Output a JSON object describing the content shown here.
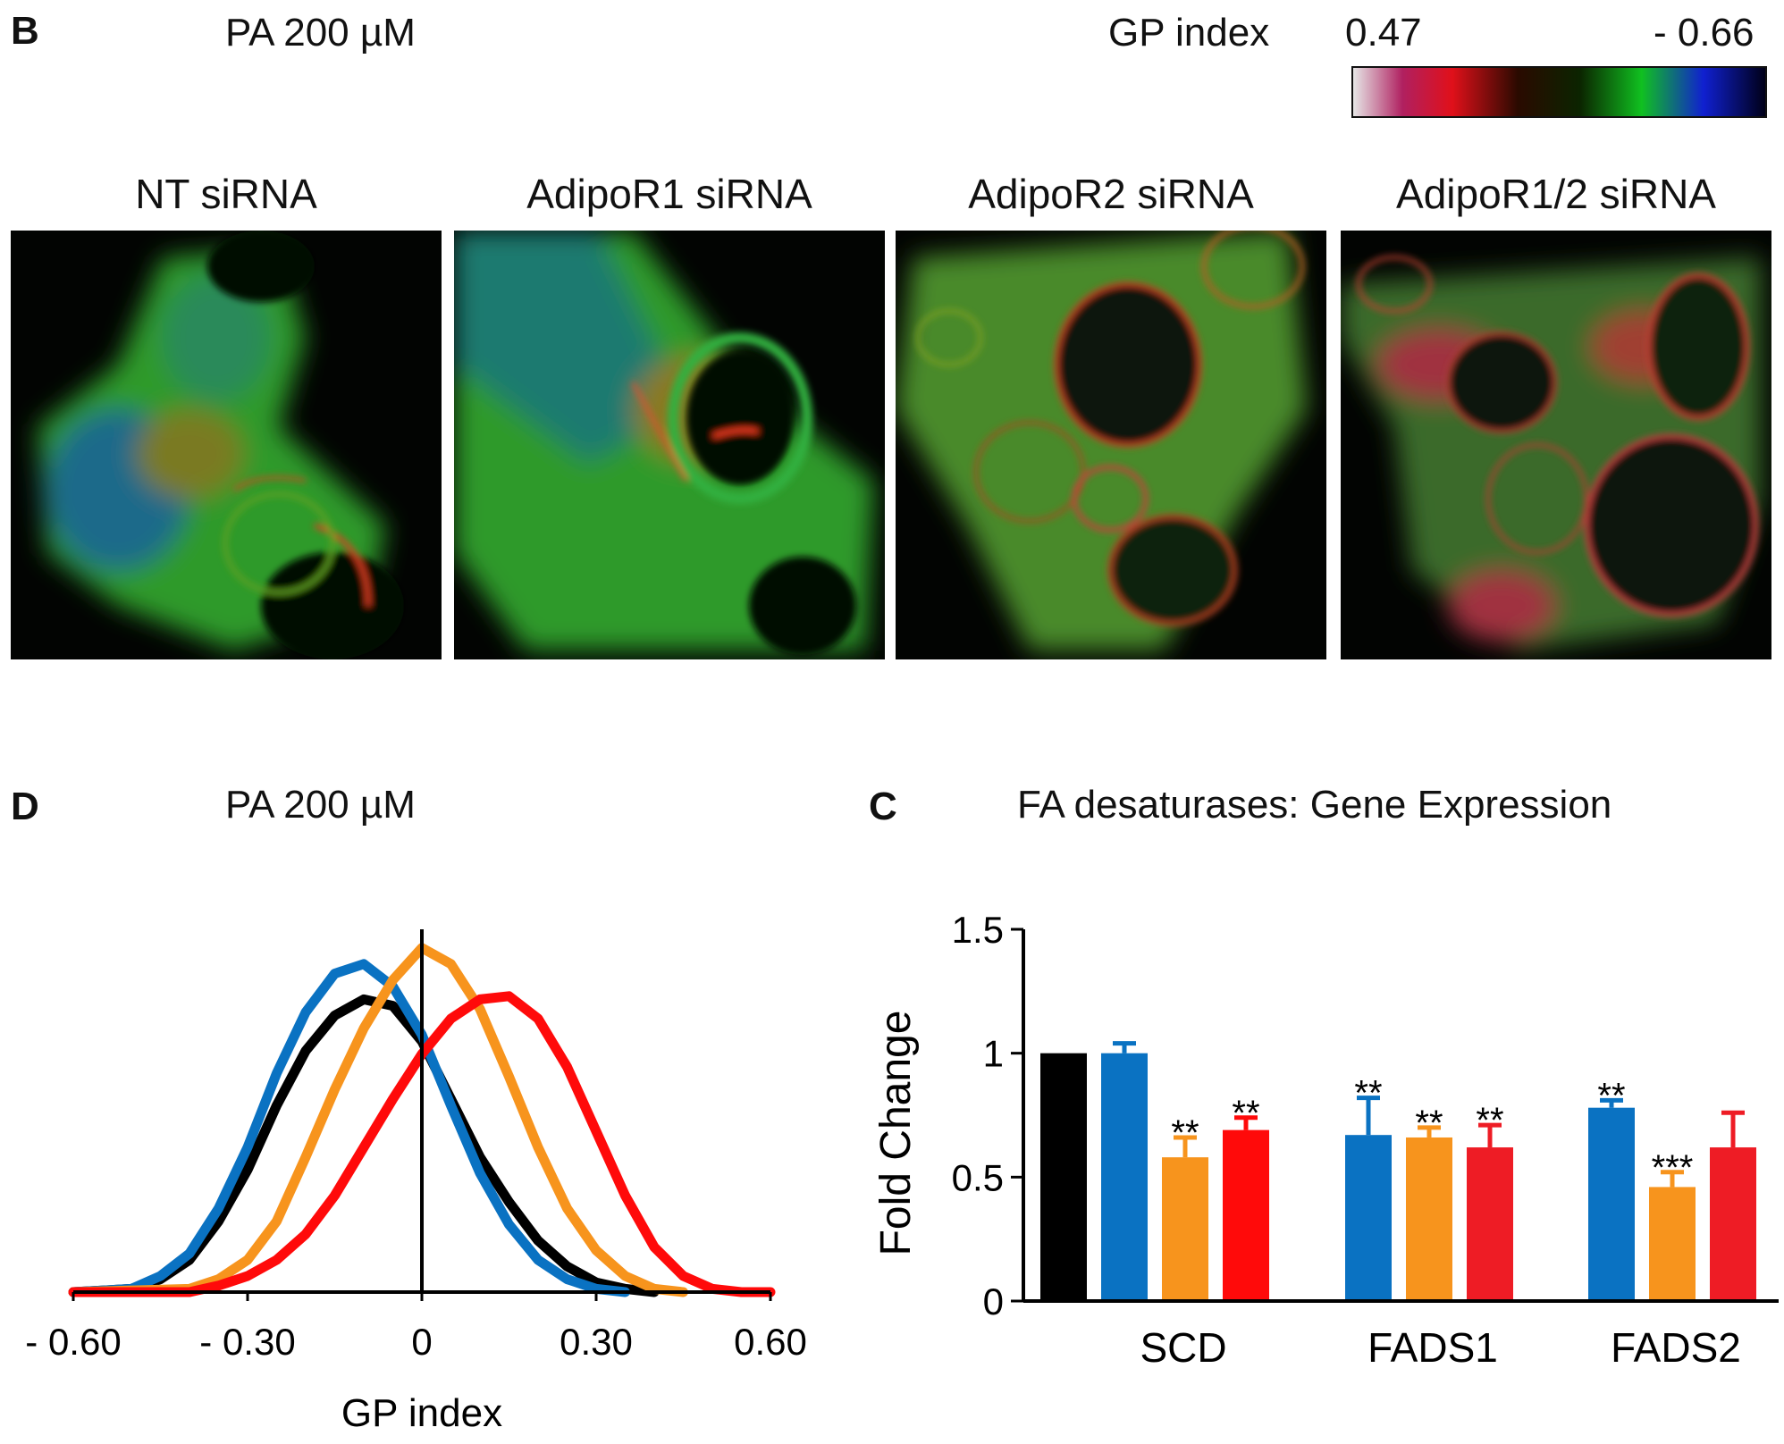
{
  "panel_b": {
    "letter": "B",
    "condition": "PA 200 µM",
    "colorbar": {
      "title": "GP index",
      "left_value": "0.47",
      "right_value": "- 0.66"
    },
    "images": [
      {
        "label": "NT siRNA"
      },
      {
        "label": "AdipoR1 siRNA"
      },
      {
        "label": "AdipoR2 siRNA"
      },
      {
        "label": "AdipoR1/2 siRNA"
      }
    ]
  },
  "panel_d": {
    "letter": "D",
    "condition": "PA 200 µM"
  },
  "panel_c": {
    "letter": "C",
    "title": "FA desaturases: Gene Expression"
  },
  "chart_data": [
    {
      "type": "line",
      "xlabel": "GP index",
      "ylabel": "",
      "xlim": [
        -0.6,
        0.6
      ],
      "xticks": [
        "- 0.60",
        "- 0.30",
        "0",
        "0.30",
        "0.60"
      ],
      "tick_values": [
        -0.6,
        -0.3,
        0,
        0.3,
        0.6
      ],
      "series": [
        {
          "color": "#000000",
          "points": [
            [
              -0.6,
              0
            ],
            [
              -0.5,
              0.01
            ],
            [
              -0.45,
              0.04
            ],
            [
              -0.4,
              0.1
            ],
            [
              -0.35,
              0.22
            ],
            [
              -0.3,
              0.38
            ],
            [
              -0.25,
              0.58
            ],
            [
              -0.2,
              0.75
            ],
            [
              -0.15,
              0.86
            ],
            [
              -0.1,
              0.91
            ],
            [
              -0.05,
              0.89
            ],
            [
              0,
              0.78
            ],
            [
              0.05,
              0.6
            ],
            [
              0.1,
              0.42
            ],
            [
              0.15,
              0.28
            ],
            [
              0.2,
              0.16
            ],
            [
              0.25,
              0.08
            ],
            [
              0.3,
              0.03
            ],
            [
              0.35,
              0.01
            ],
            [
              0.4,
              0
            ]
          ]
        },
        {
          "color": "#0a72c2",
          "points": [
            [
              -0.6,
              0
            ],
            [
              -0.5,
              0.01
            ],
            [
              -0.45,
              0.05
            ],
            [
              -0.4,
              0.12
            ],
            [
              -0.35,
              0.26
            ],
            [
              -0.3,
              0.45
            ],
            [
              -0.25,
              0.68
            ],
            [
              -0.2,
              0.87
            ],
            [
              -0.15,
              0.99
            ],
            [
              -0.1,
              1.02
            ],
            [
              -0.05,
              0.95
            ],
            [
              0,
              0.8
            ],
            [
              0.05,
              0.58
            ],
            [
              0.1,
              0.37
            ],
            [
              0.15,
              0.21
            ],
            [
              0.2,
              0.1
            ],
            [
              0.25,
              0.04
            ],
            [
              0.3,
              0.01
            ],
            [
              0.35,
              0
            ]
          ]
        },
        {
          "color": "#f7941d",
          "points": [
            [
              -0.6,
              0
            ],
            [
              -0.4,
              0.01
            ],
            [
              -0.35,
              0.04
            ],
            [
              -0.3,
              0.1
            ],
            [
              -0.25,
              0.22
            ],
            [
              -0.2,
              0.42
            ],
            [
              -0.15,
              0.63
            ],
            [
              -0.1,
              0.82
            ],
            [
              -0.05,
              0.97
            ],
            [
              0,
              1.07
            ],
            [
              0.05,
              1.02
            ],
            [
              0.1,
              0.88
            ],
            [
              0.15,
              0.67
            ],
            [
              0.2,
              0.45
            ],
            [
              0.25,
              0.26
            ],
            [
              0.3,
              0.13
            ],
            [
              0.35,
              0.05
            ],
            [
              0.4,
              0.01
            ],
            [
              0.45,
              0
            ]
          ]
        },
        {
          "color": "#ff0a0a",
          "points": [
            [
              -0.6,
              0
            ],
            [
              -0.4,
              0
            ],
            [
              -0.35,
              0.02
            ],
            [
              -0.3,
              0.05
            ],
            [
              -0.25,
              0.1
            ],
            [
              -0.2,
              0.18
            ],
            [
              -0.15,
              0.3
            ],
            [
              -0.1,
              0.45
            ],
            [
              -0.05,
              0.6
            ],
            [
              0,
              0.74
            ],
            [
              0.05,
              0.85
            ],
            [
              0.1,
              0.91
            ],
            [
              0.15,
              0.92
            ],
            [
              0.2,
              0.85
            ],
            [
              0.25,
              0.7
            ],
            [
              0.3,
              0.5
            ],
            [
              0.35,
              0.3
            ],
            [
              0.4,
              0.14
            ],
            [
              0.45,
              0.05
            ],
            [
              0.5,
              0.01
            ],
            [
              0.55,
              0
            ],
            [
              0.6,
              0
            ]
          ]
        }
      ]
    },
    {
      "type": "bar",
      "ylabel": "Fold Change",
      "ylim": [
        0,
        1.5
      ],
      "yticks": [
        "0",
        "0.5",
        "1",
        "1.5"
      ],
      "ytick_values": [
        0,
        0.5,
        1,
        1.5
      ],
      "categories": [
        "SCD",
        "FADS1",
        "FADS2"
      ],
      "groups": [
        {
          "category": "SCD",
          "bars": [
            {
              "color": "#000000",
              "value": 1.0,
              "error": 0,
              "sig": ""
            },
            {
              "color": "#0a72c2",
              "value": 1.0,
              "error": 0.04,
              "sig": ""
            },
            {
              "color": "#f7941d",
              "value": 0.58,
              "error": 0.08,
              "sig": "**"
            },
            {
              "color": "#ff0a0a",
              "value": 0.69,
              "error": 0.05,
              "sig": "**"
            }
          ]
        },
        {
          "category": "FADS1",
          "bars": [
            {
              "color": "#0a72c2",
              "value": 0.67,
              "error": 0.15,
              "sig": "**"
            },
            {
              "color": "#f7941d",
              "value": 0.66,
              "error": 0.04,
              "sig": "**"
            },
            {
              "color": "#ee1c25",
              "value": 0.62,
              "error": 0.09,
              "sig": "**"
            }
          ]
        },
        {
          "category": "FADS2",
          "bars": [
            {
              "color": "#0a72c2",
              "value": 0.78,
              "error": 0.03,
              "sig": "**"
            },
            {
              "color": "#f7941d",
              "value": 0.46,
              "error": 0.06,
              "sig": "***"
            },
            {
              "color": "#ee1c25",
              "value": 0.62,
              "error": 0.14,
              "sig": ""
            }
          ]
        }
      ]
    }
  ]
}
